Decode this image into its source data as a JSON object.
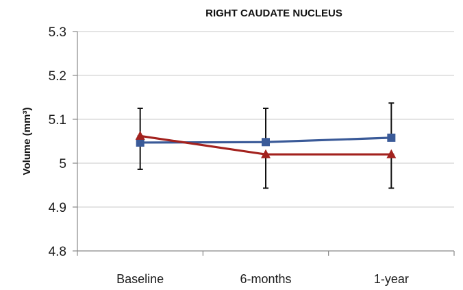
{
  "chart_data": {
    "type": "line",
    "title": "RIGHT CAUDATE NUCLEUS",
    "xlabel": "",
    "ylabel": "Volume (mm³)",
    "categories": [
      "Baseline",
      "6-months",
      "1-year"
    ],
    "ylim": [
      4.8,
      5.3
    ],
    "yticks": [
      "4.8",
      "4.9",
      "5",
      "5.1",
      "5.2",
      "5.3"
    ],
    "grid": true,
    "legend": "none",
    "series": [
      {
        "color": "#3a5a98",
        "marker": "square",
        "values": [
          5.047,
          5.048,
          5.058
        ],
        "error_upper": [
          5.125,
          5.125,
          5.137
        ],
        "error_lower": [
          5.047,
          5.048,
          5.058
        ]
      },
      {
        "color": "#a3221e",
        "marker": "triangle",
        "values": [
          5.062,
          5.02,
          5.02
        ],
        "error_upper": [
          5.062,
          5.02,
          5.02
        ],
        "error_lower": [
          4.986,
          4.943,
          4.943
        ]
      }
    ]
  }
}
